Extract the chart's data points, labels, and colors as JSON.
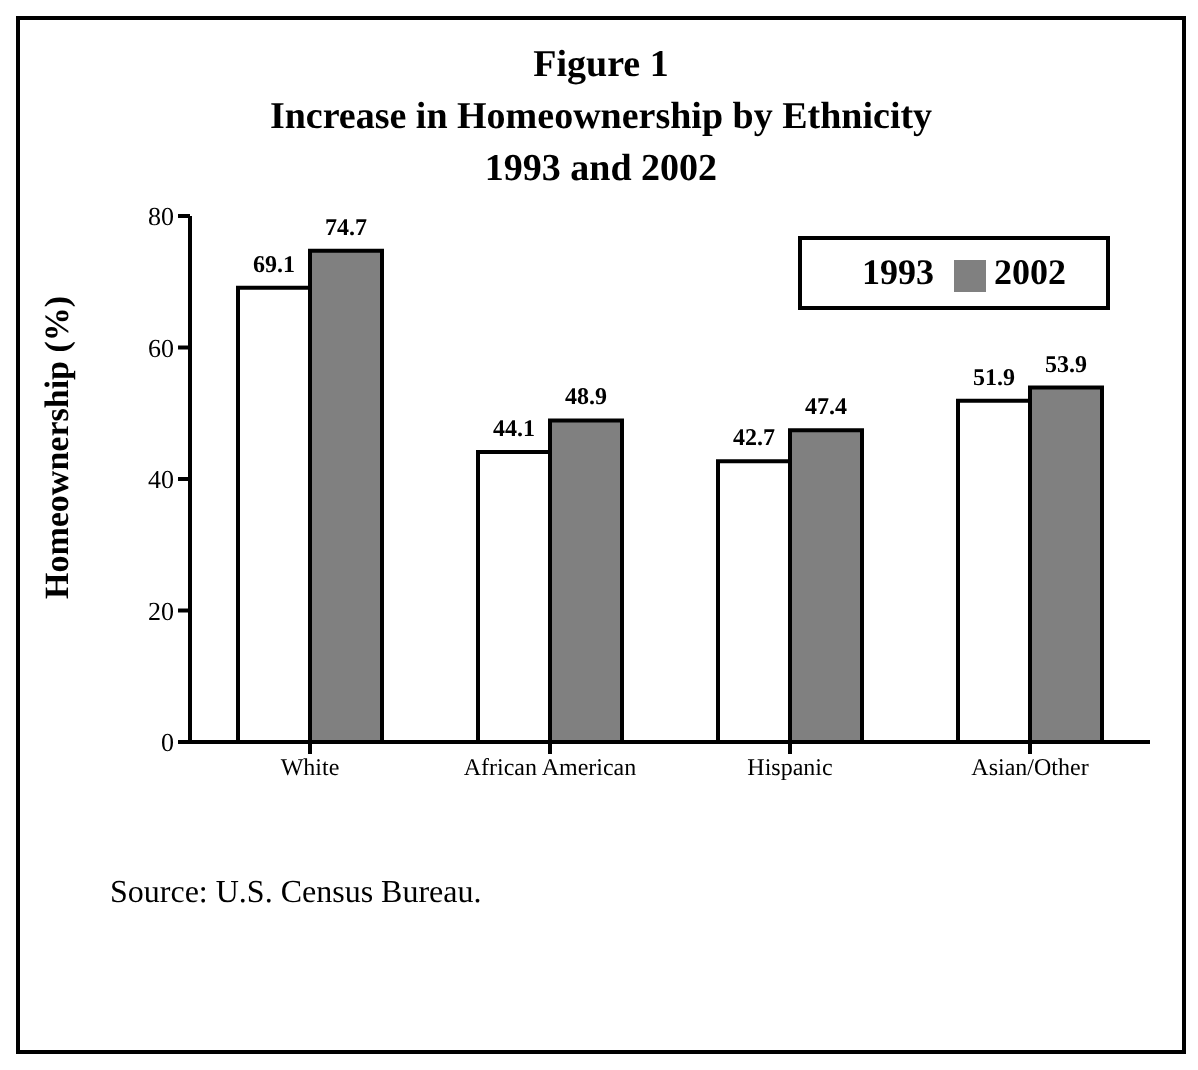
{
  "chart_data": {
    "type": "bar",
    "title": "Figure 1",
    "subtitle": "Increase in Homeownership by Ethnicity\n1993 and 2002",
    "ylabel": "Homeownership (%)",
    "categories": [
      "White",
      "African American",
      "Hispanic",
      "Asian/Other"
    ],
    "series": [
      {
        "name": "1993",
        "color": "#ffffff",
        "values": [
          69.1,
          44.1,
          42.7,
          51.9
        ]
      },
      {
        "name": "2002",
        "color": "#808080",
        "values": [
          74.7,
          48.9,
          47.4,
          53.9
        ]
      }
    ],
    "ylim": [
      0,
      80
    ],
    "yticks": [
      0,
      20,
      40,
      60,
      80
    ],
    "grid": false,
    "legend": "top right",
    "data_labels": true,
    "annotations": [
      "Source: U.S. Census Bureau."
    ]
  }
}
